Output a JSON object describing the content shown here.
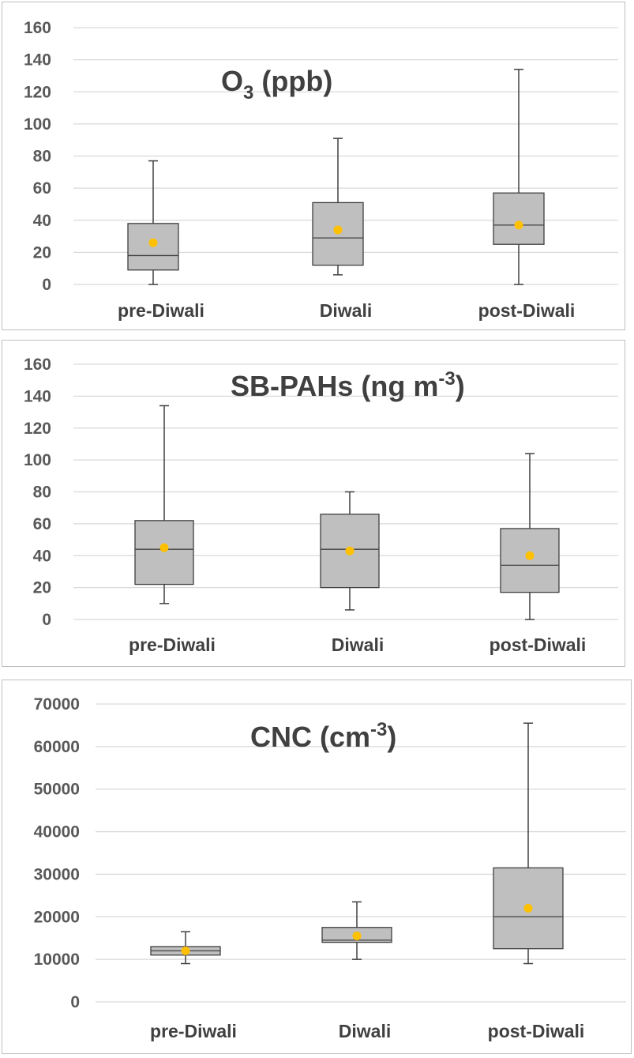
{
  "chart_data": [
    {
      "type": "box",
      "title": "O3 (ppb)",
      "title_main": "O",
      "title_sub": "3",
      "title_rest": " (ppb)",
      "ylim": [
        0,
        160
      ],
      "yticks": [
        0,
        20,
        40,
        60,
        80,
        100,
        120,
        140,
        160
      ],
      "categories": [
        "pre-Diwali",
        "Diwali",
        "post-Diwali"
      ],
      "boxes": [
        {
          "min": 0,
          "q1": 9,
          "median": 18,
          "q3": 38,
          "max": 77,
          "mean": 26
        },
        {
          "min": 6,
          "q1": 12,
          "median": 29,
          "q3": 51,
          "max": 91,
          "mean": 34
        },
        {
          "min": 0,
          "q1": 25,
          "median": 37,
          "q3": 57,
          "max": 134,
          "mean": 37
        }
      ],
      "box_color": "#bfbfbf",
      "mean_color": "#ffc000"
    },
    {
      "type": "box",
      "title": "SB-PAHs (ng m-3)",
      "title_main": "SB-PAHs (ng m",
      "title_sup": "-3",
      "title_rest": ")",
      "ylim": [
        0,
        160
      ],
      "yticks": [
        0,
        20,
        40,
        60,
        80,
        100,
        120,
        140,
        160
      ],
      "categories": [
        "pre-Diwali",
        "Diwali",
        "post-Diwali"
      ],
      "boxes": [
        {
          "min": 10,
          "q1": 22,
          "median": 44,
          "q3": 62,
          "max": 134,
          "mean": 45
        },
        {
          "min": 6,
          "q1": 20,
          "median": 44,
          "q3": 66,
          "max": 80,
          "mean": 43
        },
        {
          "min": 0,
          "q1": 17,
          "median": 34,
          "q3": 57,
          "max": 104,
          "mean": 40
        }
      ],
      "box_color": "#bfbfbf",
      "mean_color": "#ffc000"
    },
    {
      "type": "box",
      "title": "CNC (cm-3)",
      "title_main": "CNC (cm",
      "title_sup": "-3",
      "title_rest": ")",
      "ylim": [
        0,
        70000
      ],
      "yticks": [
        0,
        10000,
        20000,
        30000,
        40000,
        50000,
        60000,
        70000
      ],
      "categories": [
        "pre-Diwali",
        "Diwali",
        "post-Diwali"
      ],
      "boxes": [
        {
          "min": 9000,
          "q1": 11000,
          "median": 12000,
          "q3": 13000,
          "max": 16500,
          "mean": 12000
        },
        {
          "min": 10000,
          "q1": 14000,
          "median": 14500,
          "q3": 17500,
          "max": 23500,
          "mean": 15500
        },
        {
          "min": 9000,
          "q1": 12500,
          "median": 20000,
          "q3": 31500,
          "max": 65500,
          "mean": 22000
        }
      ],
      "box_color": "#bfbfbf",
      "mean_color": "#ffc000"
    }
  ]
}
